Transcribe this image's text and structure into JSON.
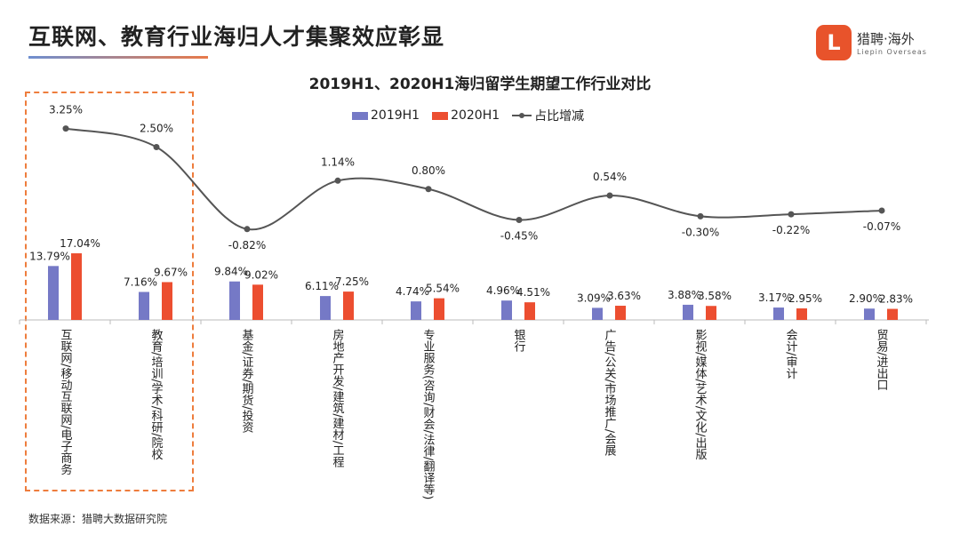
{
  "header": {
    "title": "互联网、教育行业海归人才集聚效应彰显",
    "logo_text": "猎聘·海外",
    "logo_sub": "Liepin Overseas",
    "logo_mark": "L"
  },
  "footer": {
    "source": "数据来源：猎聘大数据研究院"
  },
  "colors": {
    "s2019": "#7579c6",
    "s2020": "#ec4e30",
    "line": "#555555",
    "highlight": "#ee7d3d"
  },
  "chart_data": {
    "type": "bar+line",
    "title": "2019H1、2020H1海归留学生期望工作行业对比",
    "categories": [
      "互联网/移动互联网/电子商务",
      "教育/培训/学术/科研/院校",
      "基金/证券/期货/投资",
      "房地产开发/建筑/建材/工程",
      "专业服务(咨询/财会/法律/翻译等)",
      "银行",
      "广告/公关/市场推广/会展",
      "影视/媒体/艺术/文化/出版",
      "会计/审计",
      "贸易/进出口"
    ],
    "series": [
      {
        "name": "2019H1",
        "type": "bar",
        "values": [
          13.79,
          7.16,
          9.84,
          6.11,
          4.74,
          4.96,
          3.09,
          3.88,
          3.17,
          2.9
        ]
      },
      {
        "name": "2020H1",
        "type": "bar",
        "values": [
          17.04,
          9.67,
          9.02,
          7.25,
          5.54,
          4.51,
          3.63,
          3.58,
          2.95,
          2.83
        ]
      },
      {
        "name": "占比增减",
        "type": "line",
        "values": [
          3.25,
          2.5,
          -0.82,
          1.14,
          0.8,
          -0.45,
          0.54,
          -0.3,
          -0.22,
          -0.07
        ]
      }
    ],
    "unit": "%",
    "legend": "top",
    "grid": false,
    "highlighted_categories": [
      0,
      1
    ]
  }
}
